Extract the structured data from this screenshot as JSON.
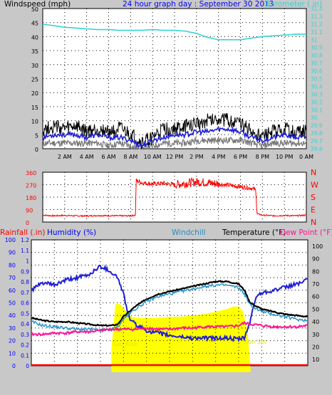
{
  "chart_data": [
    {
      "type": "line",
      "title": "24 hour graph day : September 30 2013",
      "ylabel_left": "Windspeed (mph)",
      "ylabel_right": "Barometer ( in)",
      "y_left_ticks": [
        "0",
        "5",
        "10",
        "15",
        "20",
        "25",
        "30",
        "35",
        "40",
        "45",
        "50"
      ],
      "y_right_ticks": [
        "29.6",
        "29.7",
        "29.8",
        "29.9",
        "30",
        "30.1",
        "30.2",
        "30.3",
        "30.4",
        "30.5",
        "30.6",
        "30.7",
        "30.8",
        "30.9",
        "31",
        "31.1",
        "31.2",
        "31.3",
        "31.4"
      ],
      "x_ticks": [
        "2 AM",
        "4 AM",
        "6 AM",
        "8 AM",
        "10 AM",
        "12 PM",
        "2 PM",
        "4 PM",
        "6 PM",
        "8 PM",
        "10 PM",
        "0 AM"
      ],
      "hours": [
        0,
        1,
        2,
        3,
        4,
        5,
        6,
        7,
        8,
        9,
        10,
        11,
        12,
        13,
        14,
        15,
        16,
        17,
        18,
        19,
        20,
        21,
        22,
        23,
        24
      ],
      "series": [
        {
          "name": "Barometer",
          "color": "#35d4d4",
          "values": [
            31.2,
            31.18,
            31.16,
            31.15,
            31.14,
            31.13,
            31.13,
            31.12,
            31.12,
            31.12,
            31.13,
            31.12,
            31.12,
            31.11,
            31.08,
            31.03,
            31.0,
            31.0,
            31.0,
            31.02,
            31.04,
            31.05,
            31.06,
            31.07,
            31.07
          ]
        },
        {
          "name": "Wind gust",
          "color": "#000000",
          "values": [
            7,
            8,
            7,
            8,
            6,
            7,
            6,
            7,
            5,
            2,
            4,
            7,
            7,
            8,
            9,
            10,
            11,
            10,
            9,
            6,
            4,
            6,
            7,
            6,
            6
          ]
        },
        {
          "name": "Wind speed",
          "color": "#1f1fd6",
          "values": [
            4,
            5,
            5,
            5,
            4,
            5,
            4,
            4,
            3,
            1,
            3,
            4,
            5,
            5,
            6,
            6,
            7,
            7,
            6,
            4,
            3,
            4,
            5,
            4,
            4
          ]
        },
        {
          "name": "Wind low",
          "color": "#777777",
          "values": [
            2,
            2,
            2,
            2,
            2,
            2,
            1,
            2,
            1,
            0,
            1,
            2,
            2,
            2,
            3,
            3,
            3,
            3,
            3,
            2,
            1,
            2,
            2,
            2,
            2
          ]
        }
      ]
    },
    {
      "type": "line",
      "y_ticks": [
        "360",
        "270",
        "180",
        "90",
        "0"
      ],
      "y_right_labels": [
        "N",
        "W",
        "S",
        "E",
        "N"
      ],
      "series": [
        {
          "name": "Wind direction",
          "color": "#ff0000",
          "hours": [
            0,
            1,
            2,
            3,
            4,
            5,
            6,
            7,
            8,
            8.45,
            8.5,
            9,
            10,
            11,
            12,
            13,
            14,
            15,
            16,
            17,
            18,
            19,
            19.4,
            19.5,
            20,
            21,
            22,
            23,
            24
          ],
          "values": [
            50,
            45,
            48,
            45,
            44,
            47,
            46,
            45,
            45,
            50,
            300,
            285,
            275,
            280,
            270,
            280,
            290,
            285,
            275,
            265,
            255,
            245,
            230,
            60,
            50,
            45,
            48,
            45,
            50
          ]
        }
      ]
    },
    {
      "type": "line",
      "ylabel_rain": "Rainfall (.in)",
      "ylabel_humidity": "Humidity (%)",
      "ylabel_windchill": "Windchill",
      "ylabel_temperature": "Temperature (°F)",
      "ylabel_dewpoint": "Dew Point (°F)",
      "y_humidity_ticks": [
        "0",
        "10",
        "20",
        "30",
        "40",
        "50",
        "60",
        "70",
        "80",
        "90",
        "100"
      ],
      "y_rain_ticks": [
        "0",
        "0.1",
        "0.2",
        "0.3",
        "0.4",
        "0.5",
        "0.6",
        "0.7",
        "0.8",
        "0.9",
        "1",
        "1.1",
        "1.2"
      ],
      "y_temp_ticks": [
        "10",
        "20",
        "30",
        "40",
        "50",
        "60",
        "70",
        "80",
        "90",
        "100"
      ],
      "sunrise_label": "Sun Rise",
      "sunset_label": "Sun Set",
      "sunrise_hour": 6.95,
      "sunset_hour": 19.05,
      "solar": {
        "color": "#ffff00",
        "hours": [
          6.95,
          7.3,
          7.7,
          8.1,
          8.5,
          9,
          10,
          11,
          12,
          13,
          14,
          15,
          16,
          17,
          17.5,
          18,
          18.4,
          18.8,
          19.05
        ],
        "values": [
          18,
          54,
          54,
          50,
          45,
          43,
          43,
          43,
          44,
          44,
          45,
          46,
          48,
          50,
          52,
          52,
          48,
          30,
          0
        ]
      },
      "series": [
        {
          "name": "Humidity",
          "color": "#1f1fd6",
          "hours": [
            0,
            1,
            2,
            3,
            4,
            5,
            5.5,
            6,
            6.5,
            7,
            7.5,
            8,
            8.5,
            9,
            10,
            11,
            12,
            13,
            14,
            15,
            16,
            17,
            18,
            18.5,
            19,
            19.5,
            20,
            21,
            22,
            23,
            24
          ],
          "values": [
            60,
            66,
            64,
            68,
            70,
            72,
            76,
            79,
            77,
            74,
            70,
            57,
            38,
            33,
            28,
            26,
            24,
            23,
            22,
            22,
            22,
            22,
            21,
            22,
            35,
            55,
            58,
            60,
            62,
            65,
            68
          ]
        },
        {
          "name": "Temperature",
          "color": "#000000",
          "hours": [
            0,
            1,
            2,
            3,
            4,
            5,
            6,
            7,
            7.5,
            8,
            9,
            10,
            11,
            12,
            13,
            14,
            15,
            16,
            17,
            18,
            18.5,
            19,
            20,
            21,
            22,
            23,
            24
          ],
          "values": [
            43,
            41,
            40,
            40,
            39,
            38,
            37,
            37,
            38,
            44,
            52,
            58,
            62,
            64,
            66,
            68,
            70,
            72,
            72,
            70,
            65,
            55,
            50,
            48,
            46,
            45,
            44
          ]
        },
        {
          "name": "Windchill",
          "color": "#1f8ec8",
          "hours": [
            0,
            1,
            2,
            3,
            4,
            5,
            6,
            7,
            7.5,
            8,
            9,
            10,
            11,
            12,
            13,
            14,
            15,
            16,
            17,
            18,
            18.5,
            19,
            20,
            21,
            22,
            23,
            24
          ],
          "values": [
            40,
            37,
            36,
            35,
            34,
            34,
            33,
            34,
            36,
            42,
            50,
            56,
            60,
            62,
            64,
            66,
            68,
            69,
            69,
            67,
            62,
            53,
            48,
            46,
            44,
            42,
            41
          ]
        },
        {
          "name": "Dew point",
          "color": "#ff1493",
          "hours": [
            0,
            1,
            2,
            3,
            4,
            5,
            6,
            7,
            8,
            9,
            10,
            11,
            12,
            13,
            14,
            15,
            16,
            17,
            18,
            18.5,
            19,
            20,
            21,
            22,
            23,
            24
          ],
          "values": [
            30,
            30,
            31,
            31,
            32,
            32,
            33,
            34,
            34,
            34,
            35,
            34,
            34,
            35,
            35,
            36,
            36,
            36,
            37,
            39,
            38,
            37,
            36,
            36,
            36,
            37
          ]
        },
        {
          "name": "Rainfall",
          "color": "#ff0000",
          "hours": [
            0,
            24
          ],
          "values": [
            0,
            0
          ]
        }
      ]
    }
  ]
}
